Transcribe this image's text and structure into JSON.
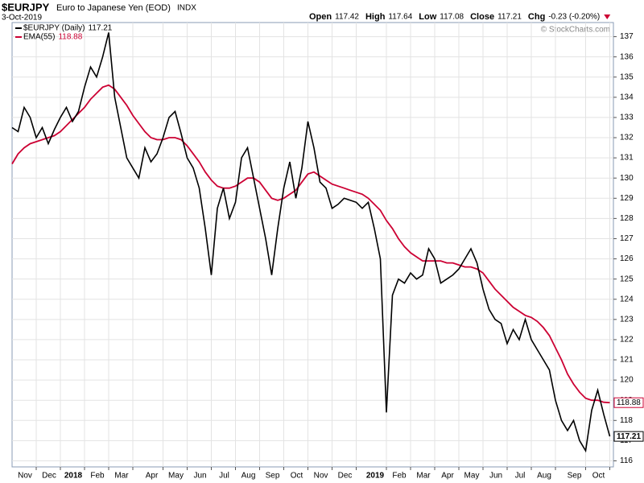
{
  "chart_data": {
    "type": "line",
    "header": {
      "symbol": "$EURJPY",
      "description": "Euro to Japanese Yen (EOD)",
      "exchange": "INDX",
      "date": "3-Oct-2019",
      "quotes": [
        {
          "label": "Open",
          "value": 117.42
        },
        {
          "label": "High",
          "value": 117.64
        },
        {
          "label": "Low",
          "value": 117.08
        },
        {
          "label": "Close",
          "value": 117.21
        }
      ],
      "change_label": "Chg",
      "change": "-0.23 (-0.20%)"
    },
    "watermark": "© StockCharts.com",
    "categories": [
      null,
      null,
      null,
      null,
      "Nov",
      null,
      null,
      null,
      "Dec",
      null,
      null,
      null,
      "2018",
      null,
      null,
      null,
      "Feb",
      null,
      null,
      null,
      "Mar",
      null,
      null,
      null,
      null,
      "Apr",
      null,
      null,
      null,
      "May",
      null,
      null,
      null,
      "Jun",
      null,
      null,
      null,
      "Jul",
      null,
      null,
      null,
      "Aug",
      null,
      null,
      null,
      "Sep",
      null,
      null,
      null,
      "Oct",
      null,
      null,
      null,
      "Nov",
      null,
      null,
      null,
      "Dec",
      null,
      null,
      null,
      null,
      "2019",
      null,
      null,
      null,
      "Feb",
      null,
      null,
      null,
      "Mar",
      null,
      null,
      null,
      "Apr",
      null,
      null,
      null,
      "May",
      null,
      null,
      null,
      "Jun",
      null,
      null,
      null,
      "Jul",
      null,
      null,
      null,
      "Aug",
      null,
      null,
      null,
      null,
      "Sep",
      null,
      null,
      null,
      "Oct"
    ],
    "series": [
      {
        "name": "$EURJPY (Daily)",
        "color": "#000000",
        "values": [
          132.5,
          132.3,
          133.5,
          133.0,
          132.0,
          132.5,
          131.7,
          132.4,
          133.0,
          133.5,
          132.8,
          133.3,
          134.5,
          135.5,
          135.0,
          136.0,
          137.2,
          134.0,
          132.5,
          131.0,
          130.5,
          130.0,
          131.5,
          130.8,
          131.2,
          132.0,
          133.0,
          133.3,
          132.2,
          131.0,
          130.5,
          129.5,
          127.5,
          125.2,
          128.5,
          129.5,
          128.0,
          128.8,
          131.0,
          131.5,
          130.0,
          128.5,
          127.0,
          125.2,
          127.5,
          129.5,
          130.8,
          129.0,
          130.5,
          132.8,
          131.5,
          129.8,
          129.5,
          128.5,
          128.7,
          129.0,
          128.9,
          128.8,
          128.5,
          128.8,
          127.5,
          126.0,
          118.4,
          124.2,
          125.0,
          124.8,
          125.3,
          125.0,
          125.2,
          126.5,
          126.0,
          124.8,
          125.0,
          125.2,
          125.5,
          126.0,
          126.5,
          125.8,
          124.5,
          123.5,
          123.0,
          122.8,
          121.8,
          122.5,
          122.0,
          123.0,
          122.0,
          121.5,
          121.0,
          120.5,
          119.0,
          118.0,
          117.5,
          118.0,
          117.0,
          116.5,
          118.5,
          119.5,
          118.3,
          117.21
        ]
      },
      {
        "name": "EMA(55)",
        "color": "#cc0033",
        "values": [
          130.7,
          131.2,
          131.5,
          131.7,
          131.8,
          131.9,
          132.0,
          132.1,
          132.3,
          132.6,
          132.9,
          133.2,
          133.5,
          133.9,
          134.2,
          134.5,
          134.6,
          134.4,
          134.0,
          133.6,
          133.1,
          132.7,
          132.3,
          132.0,
          131.9,
          131.9,
          132.0,
          132.0,
          131.9,
          131.6,
          131.2,
          130.8,
          130.3,
          129.9,
          129.6,
          129.5,
          129.5,
          129.6,
          129.8,
          130.0,
          130.0,
          129.8,
          129.4,
          129.0,
          128.9,
          129.0,
          129.2,
          129.4,
          129.8,
          130.2,
          130.3,
          130.1,
          129.9,
          129.7,
          129.6,
          129.5,
          129.4,
          129.3,
          129.2,
          129.0,
          128.7,
          128.4,
          127.9,
          127.5,
          127.0,
          126.6,
          126.3,
          126.1,
          125.9,
          125.9,
          125.9,
          125.9,
          125.8,
          125.8,
          125.7,
          125.6,
          125.6,
          125.5,
          125.3,
          124.9,
          124.5,
          124.2,
          123.9,
          123.6,
          123.4,
          123.2,
          123.1,
          122.9,
          122.6,
          122.2,
          121.6,
          121.0,
          120.3,
          119.8,
          119.4,
          119.1,
          119.0,
          119.0,
          118.9,
          118.88
        ]
      }
    ],
    "ylim": [
      115.7,
      137.7
    ],
    "yticks": [
      116,
      117,
      118,
      119,
      120,
      121,
      122,
      123,
      124,
      125,
      126,
      127,
      128,
      129,
      130,
      131,
      132,
      133,
      134,
      135,
      136,
      137
    ],
    "grid": true
  }
}
